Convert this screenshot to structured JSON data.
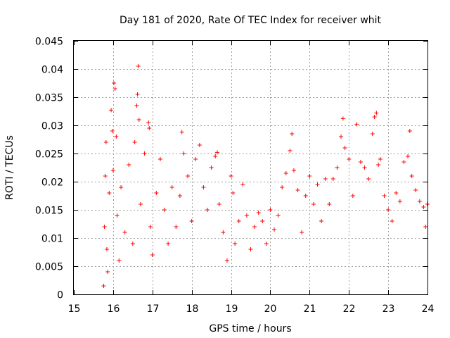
{
  "chart_data": {
    "type": "scatter",
    "title": "Day 181 of 2020, Rate Of TEC Index for receiver whit",
    "xlabel": "GPS time / hours",
    "ylabel": "ROTI / TECUs",
    "xlim": [
      15,
      24
    ],
    "ylim": [
      0,
      0.045
    ],
    "xticks": [
      15,
      16,
      17,
      18,
      19,
      20,
      21,
      22,
      23,
      24
    ],
    "xtick_labels": [
      "15",
      "16",
      "17",
      "18",
      "19",
      "20",
      "21",
      "22",
      "23",
      "24"
    ],
    "yticks": [
      0,
      0.005,
      0.01,
      0.015,
      0.02,
      0.025,
      0.03,
      0.035,
      0.04,
      0.045
    ],
    "ytick_labels": [
      "0",
      "0.005",
      "0.01",
      "0.015",
      "0.02",
      "0.025",
      "0.03",
      "0.035",
      "0.04",
      "0.045"
    ],
    "grid": true,
    "marker": "plus",
    "color": "#ff0000",
    "series": [
      {
        "name": "ROTI",
        "points": [
          [
            15.76,
            0.0015
          ],
          [
            15.78,
            0.012
          ],
          [
            15.8,
            0.021
          ],
          [
            15.82,
            0.027
          ],
          [
            15.84,
            0.008
          ],
          [
            15.86,
            0.004
          ],
          [
            15.9,
            0.018
          ],
          [
            15.95,
            0.0327
          ],
          [
            15.98,
            0.029
          ],
          [
            16.0,
            0.022
          ],
          [
            16.02,
            0.0375
          ],
          [
            16.05,
            0.0365
          ],
          [
            16.08,
            0.028
          ],
          [
            16.1,
            0.014
          ],
          [
            16.15,
            0.006
          ],
          [
            16.2,
            0.019
          ],
          [
            16.3,
            0.011
          ],
          [
            16.4,
            0.023
          ],
          [
            16.5,
            0.009
          ],
          [
            16.55,
            0.027
          ],
          [
            16.6,
            0.0335
          ],
          [
            16.62,
            0.0355
          ],
          [
            16.64,
            0.0405
          ],
          [
            16.66,
            0.031
          ],
          [
            16.7,
            0.016
          ],
          [
            16.8,
            0.025
          ],
          [
            16.9,
            0.0305
          ],
          [
            16.92,
            0.0295
          ],
          [
            16.95,
            0.012
          ],
          [
            17.0,
            0.007
          ],
          [
            17.1,
            0.018
          ],
          [
            17.2,
            0.024
          ],
          [
            17.3,
            0.015
          ],
          [
            17.4,
            0.009
          ],
          [
            17.5,
            0.019
          ],
          [
            17.6,
            0.012
          ],
          [
            17.7,
            0.0175
          ],
          [
            17.75,
            0.0288
          ],
          [
            17.8,
            0.025
          ],
          [
            17.9,
            0.021
          ],
          [
            18.0,
            0.013
          ],
          [
            18.1,
            0.024
          ],
          [
            18.2,
            0.0265
          ],
          [
            18.3,
            0.019
          ],
          [
            18.4,
            0.015
          ],
          [
            18.5,
            0.0225
          ],
          [
            18.6,
            0.0245
          ],
          [
            18.65,
            0.0252
          ],
          [
            18.7,
            0.016
          ],
          [
            18.8,
            0.011
          ],
          [
            18.9,
            0.006
          ],
          [
            19.0,
            0.021
          ],
          [
            19.05,
            0.018
          ],
          [
            19.1,
            0.009
          ],
          [
            19.2,
            0.013
          ],
          [
            19.3,
            0.0195
          ],
          [
            19.4,
            0.014
          ],
          [
            19.5,
            0.008
          ],
          [
            19.6,
            0.012
          ],
          [
            19.7,
            0.0145
          ],
          [
            19.8,
            0.013
          ],
          [
            19.9,
            0.009
          ],
          [
            20.0,
            0.015
          ],
          [
            20.1,
            0.0115
          ],
          [
            20.2,
            0.014
          ],
          [
            20.3,
            0.019
          ],
          [
            20.4,
            0.0215
          ],
          [
            20.5,
            0.0255
          ],
          [
            20.55,
            0.0285
          ],
          [
            20.6,
            0.022
          ],
          [
            20.7,
            0.0185
          ],
          [
            20.8,
            0.011
          ],
          [
            20.9,
            0.0175
          ],
          [
            21.0,
            0.021
          ],
          [
            21.1,
            0.016
          ],
          [
            21.2,
            0.0195
          ],
          [
            21.3,
            0.013
          ],
          [
            21.4,
            0.0205
          ],
          [
            21.5,
            0.016
          ],
          [
            21.6,
            0.0205
          ],
          [
            21.7,
            0.0225
          ],
          [
            21.8,
            0.028
          ],
          [
            21.85,
            0.0312
          ],
          [
            21.9,
            0.026
          ],
          [
            22.0,
            0.024
          ],
          [
            22.1,
            0.0175
          ],
          [
            22.2,
            0.0302
          ],
          [
            22.3,
            0.0235
          ],
          [
            22.4,
            0.0225
          ],
          [
            22.5,
            0.0205
          ],
          [
            22.6,
            0.0285
          ],
          [
            22.65,
            0.0315
          ],
          [
            22.7,
            0.0322
          ],
          [
            22.75,
            0.023
          ],
          [
            22.8,
            0.024
          ],
          [
            22.9,
            0.0175
          ],
          [
            23.0,
            0.015
          ],
          [
            23.1,
            0.013
          ],
          [
            23.2,
            0.018
          ],
          [
            23.3,
            0.0165
          ],
          [
            23.4,
            0.0235
          ],
          [
            23.5,
            0.0245
          ],
          [
            23.55,
            0.029
          ],
          [
            23.6,
            0.021
          ],
          [
            23.7,
            0.0185
          ],
          [
            23.8,
            0.0165
          ],
          [
            23.9,
            0.0155
          ],
          [
            23.95,
            0.012
          ],
          [
            24.0,
            0.016
          ]
        ]
      }
    ]
  }
}
